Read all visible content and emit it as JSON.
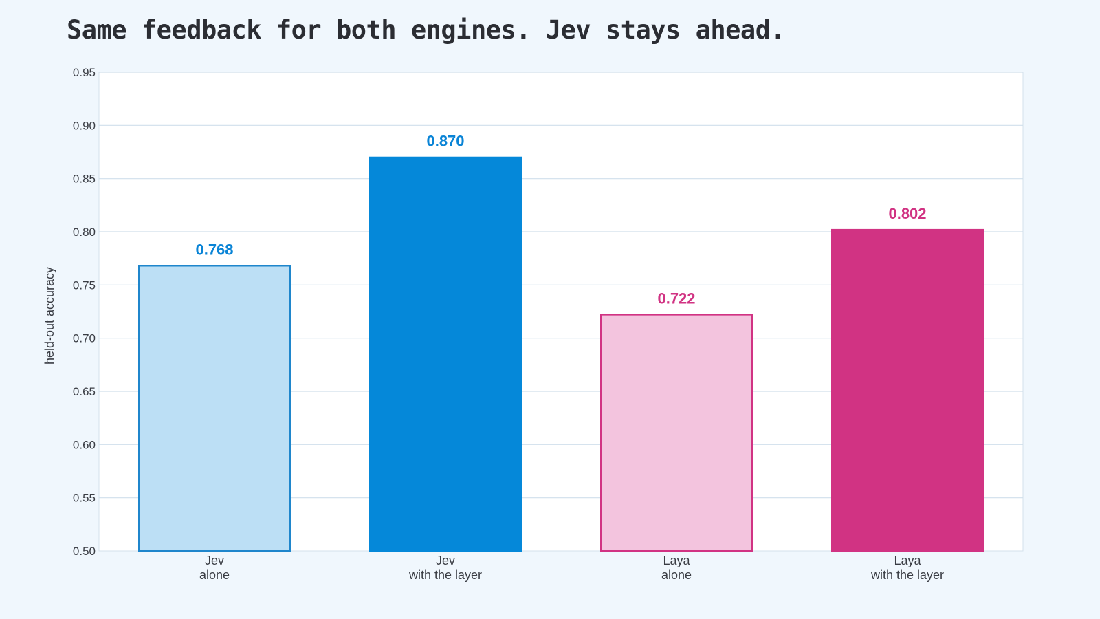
{
  "chart_data": {
    "type": "bar",
    "title": "Same feedback for both engines. Jev stays ahead.",
    "xlabel": "",
    "ylabel": "held-out accuracy",
    "ylim": [
      0.5,
      0.95
    ],
    "yticks": [
      "0.50",
      "0.55",
      "0.60",
      "0.65",
      "0.70",
      "0.75",
      "0.80",
      "0.85",
      "0.90",
      "0.95"
    ],
    "grid": true,
    "categories": [
      {
        "line1": "Jev",
        "line2": "alone"
      },
      {
        "line1": "Jev",
        "line2": "with the layer"
      },
      {
        "line1": "Laya",
        "line2": "alone"
      },
      {
        "line1": "Laya",
        "line2": "with the layer"
      }
    ],
    "values": [
      0.768,
      0.87,
      0.722,
      0.802
    ],
    "value_labels": [
      "0.768",
      "0.870",
      "0.722",
      "0.802"
    ],
    "colors": {
      "fills": [
        "#bcdff5",
        "#0588d9",
        "#f3c4de",
        "#d13383"
      ],
      "strokes": [
        "#1f86cc",
        "#0588d9",
        "#d13383",
        "#d13383"
      ],
      "labels": [
        "#0a84d6",
        "#0a84d6",
        "#d13383",
        "#d13383"
      ]
    }
  }
}
